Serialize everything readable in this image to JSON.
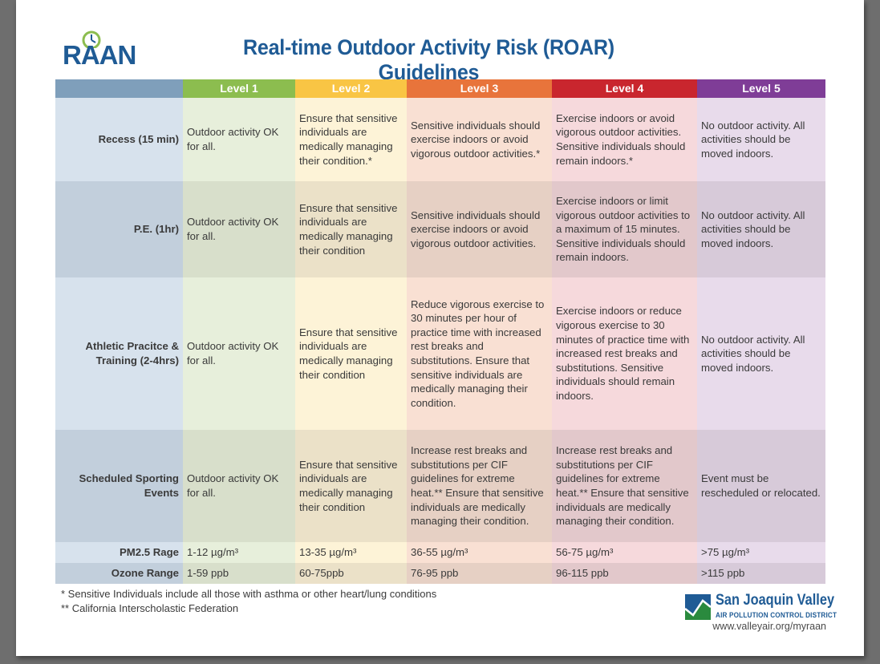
{
  "title": "Real-time Outdoor Activity Risk (ROAR) Guidelines",
  "logo": {
    "text": "RAAN"
  },
  "levels": [
    "Level 1",
    "Level 2",
    "Level 3",
    "Level 4",
    "Level 5"
  ],
  "colors": {
    "level1": "#8cbd4f",
    "level2": "#f9c544",
    "level3": "#e8743b",
    "level4": "#c9262e",
    "level5": "#7f3d97",
    "title": "#1f5b95"
  },
  "rows": [
    {
      "label": "Recess (15 min)",
      "cells": [
        "Outdoor activity OK for all.",
        "Ensure that sensitive individuals are medically managing their condition.*",
        "Sensitive individuals should exercise indoors or avoid vigorous outdoor activities.*",
        "Exercise indoors or avoid vigorous outdoor activities. Sensitive individuals should remain indoors.*",
        "No outdoor activity. All activities should be moved indoors."
      ]
    },
    {
      "label": "P.E. (1hr)",
      "cells": [
        "Outdoor activity OK for all.",
        "Ensure that sensitive individuals are medically managing their condition",
        "Sensitive individuals should exercise indoors or avoid vigorous outdoor activities.",
        "Exercise indoors or limit vigorous outdoor activities to a maximum of 15 minutes. Sensitive individuals should remain indoors.",
        "No outdoor activity. All activities should be moved indoors."
      ]
    },
    {
      "label": "Athletic Pracitce & Training (2-4hrs)",
      "cells": [
        "Outdoor activity OK for all.",
        "Ensure that sensitive individuals are medically managing their condition",
        "Reduce vigorous exercise to 30 minutes per hour of practice time with increased rest breaks and substitutions. Ensure that sensitive individuals are medically managing their condition.",
        "Exercise indoors or reduce vigorous exercise to 30 minutes of practice time with increased rest breaks and substitutions. Sensitive individuals should remain indoors.",
        "No outdoor activity. All activities should be moved indoors."
      ]
    },
    {
      "label": "Scheduled Sporting Events",
      "cells": [
        "Outdoor activity OK for all.",
        "Ensure that sensitive individuals are medically managing their condition",
        "Increase rest breaks and substitutions per CIF guidelines for extreme heat.** Ensure that sensitive individuals are medically managing their condition.",
        "Increase rest breaks and substitutions per CIF guidelines for extreme heat.** Ensure that sensitive individuals are medically managing their condition.",
        "Event must be rescheduled or relocated."
      ]
    },
    {
      "label": "PM2.5 Rage",
      "cells": [
        "1-12 µg/m³",
        "13-35 µg/m³",
        "36-55 µg/m³",
        "56-75 µg/m³",
        ">75 µg/m³"
      ]
    },
    {
      "label": "Ozone Range",
      "cells": [
        "1-59 ppb",
        "60-75ppb",
        "76-95 ppb",
        "96-115 ppb",
        ">115 ppb"
      ]
    }
  ],
  "footnotes": [
    "* Sensitive Individuals include all those with asthma or other heart/lung conditions",
    "** California Interscholastic Federation"
  ],
  "district": {
    "name": "San Joaquin Valley",
    "subtitle": "AIR POLLUTION CONTROL DISTRICT",
    "url": "www.valleyair.org/myraan"
  }
}
